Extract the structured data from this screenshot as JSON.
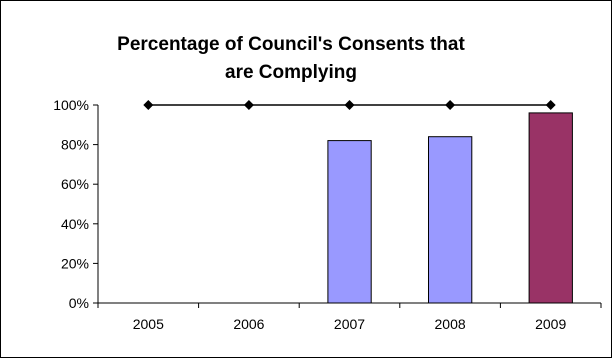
{
  "chart_data": {
    "type": "bar",
    "title_lines": [
      "Percentage of Council's Consents that",
      "are Complying"
    ],
    "categories": [
      "2005",
      "2006",
      "2007",
      "2008",
      "2009"
    ],
    "series": [
      {
        "kind": "bar",
        "values": [
          null,
          null,
          82,
          84,
          96
        ],
        "colors": [
          "#9999FF",
          "#9999FF",
          "#9999FF",
          "#9999FF",
          "#993366"
        ]
      },
      {
        "kind": "line",
        "values": [
          100,
          100,
          100,
          100,
          100
        ],
        "color": "#000000"
      }
    ],
    "ylim": [
      0,
      100
    ],
    "yticks": [
      0,
      20,
      40,
      60,
      80,
      100
    ],
    "ytick_labels": [
      "0%",
      "20%",
      "40%",
      "60%",
      "80%",
      "100%"
    ],
    "grid": false,
    "legend": "none"
  }
}
